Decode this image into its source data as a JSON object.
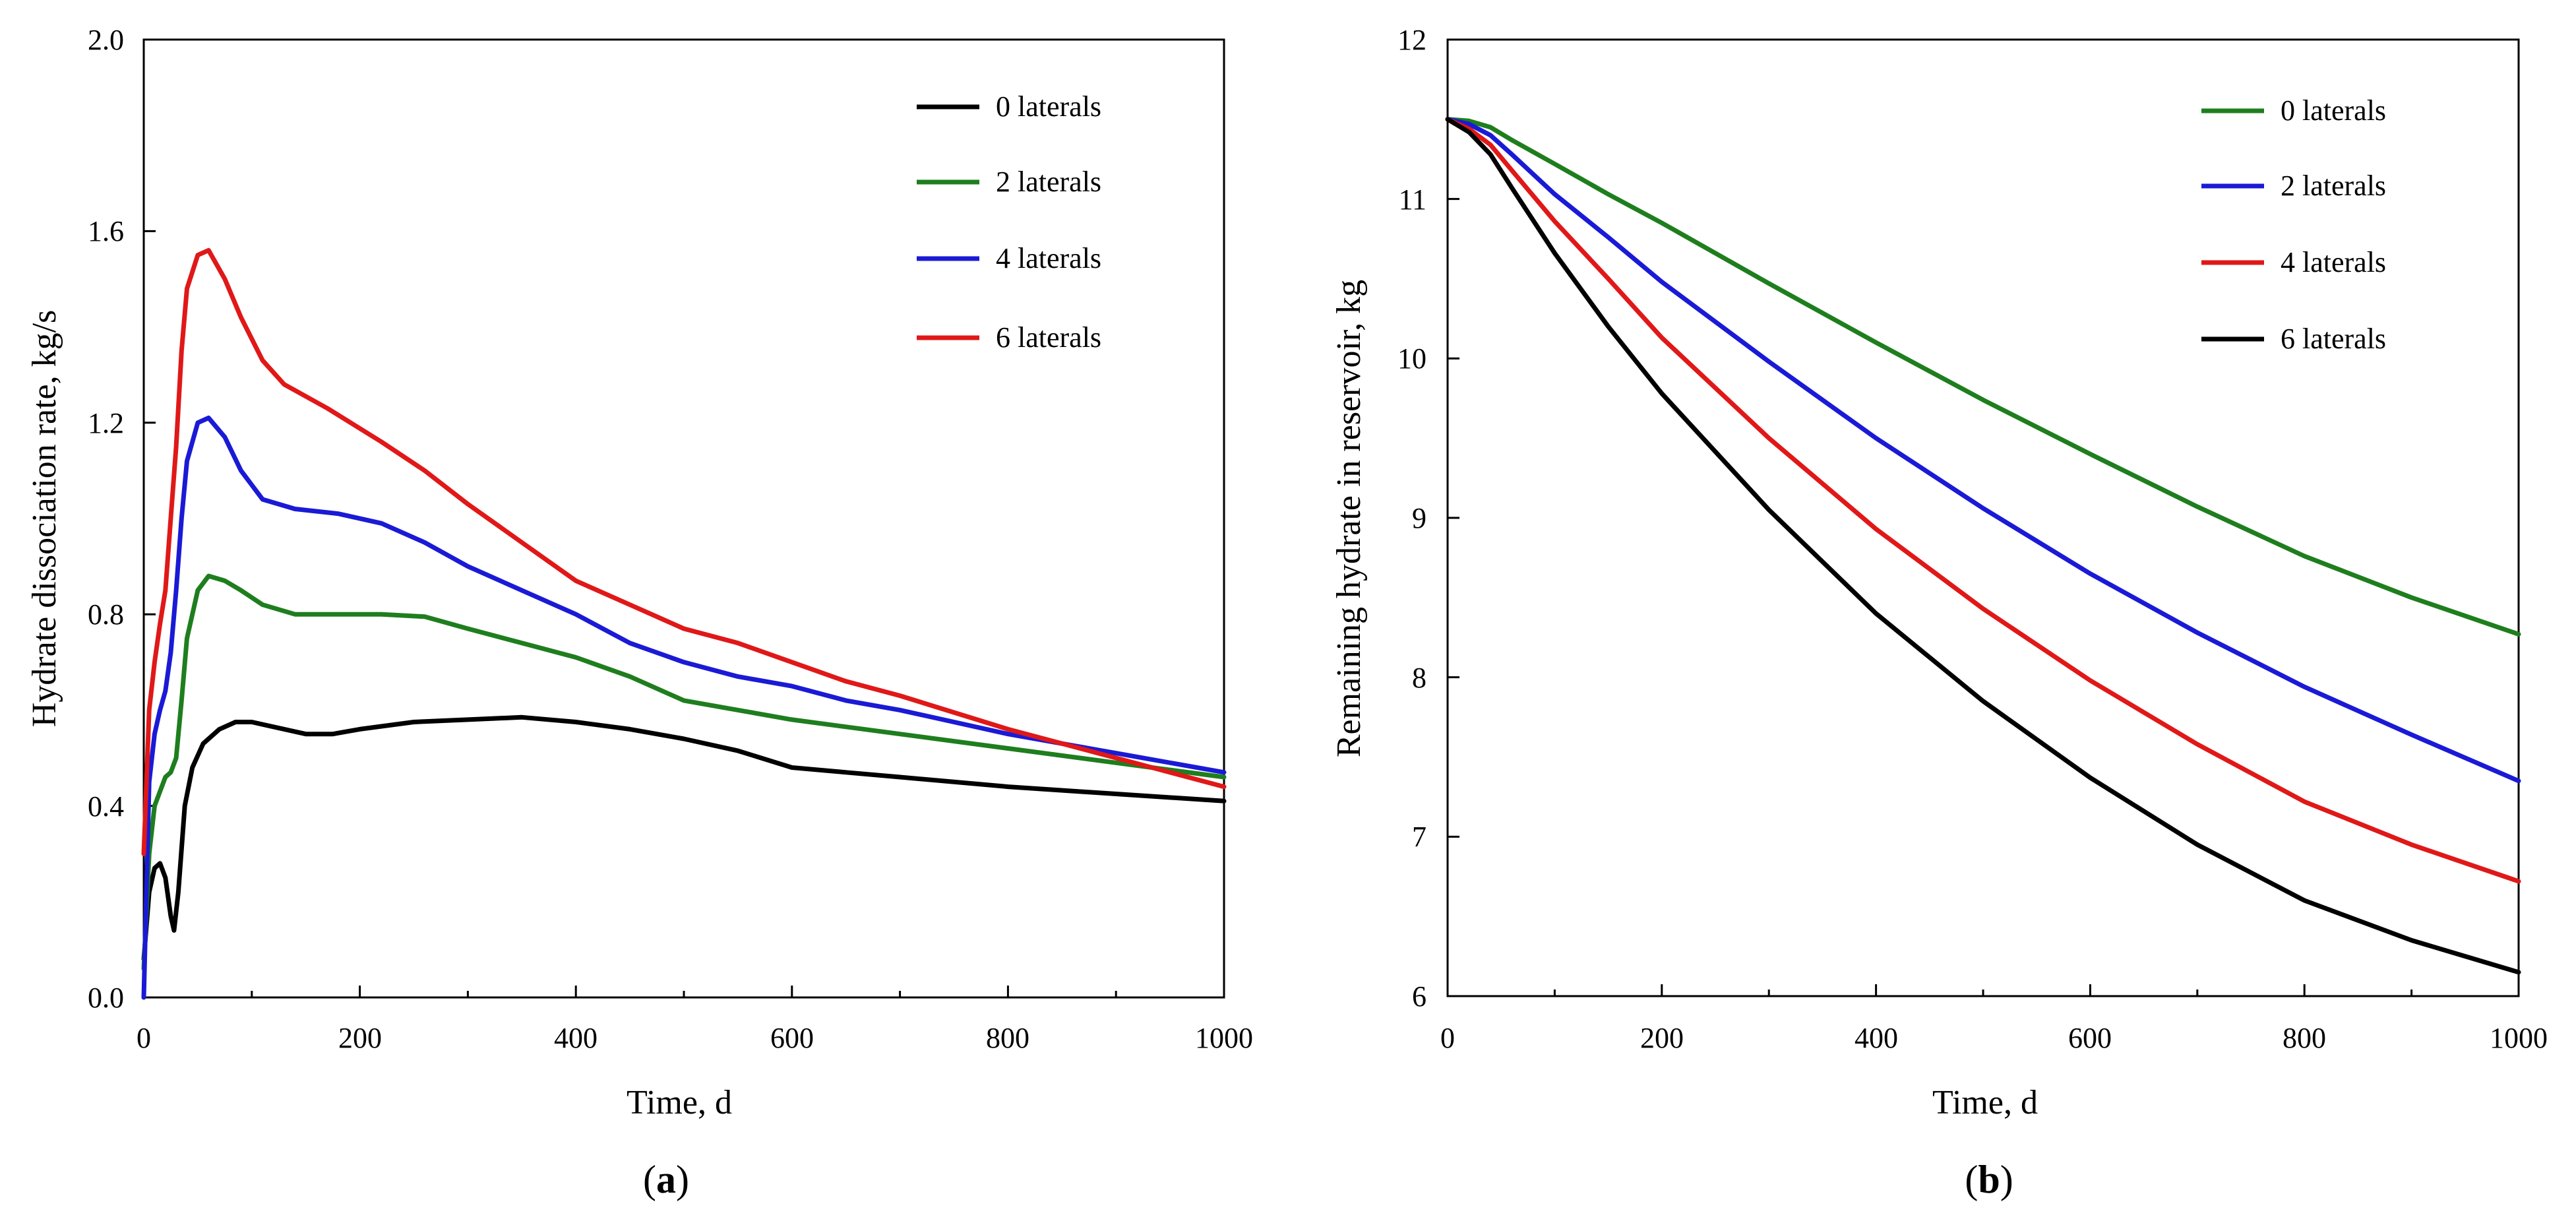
{
  "chart_data": [
    {
      "type": "line",
      "panel": "a",
      "caption_open": "(",
      "caption_letter": "a",
      "caption_close": ")",
      "xlabel": "Time, d",
      "ylabel": "Hydrate dissociation rate, kg/s",
      "xlim": [
        0,
        1000
      ],
      "ylim": [
        0.0,
        2.0
      ],
      "xticks": [
        "0",
        "200",
        "400",
        "600",
        "800",
        "1000"
      ],
      "yticks": [
        "0.0",
        "0.4",
        "0.8",
        "1.2",
        "1.6",
        "2.0"
      ],
      "legend_position": "top-right",
      "series": [
        {
          "name": "0 laterals",
          "color": "#000000",
          "points": [
            [
              0,
              0.08
            ],
            [
              5,
              0.22
            ],
            [
              10,
              0.27
            ],
            [
              15,
              0.28
            ],
            [
              20,
              0.25
            ],
            [
              25,
              0.17
            ],
            [
              28,
              0.14
            ],
            [
              32,
              0.22
            ],
            [
              38,
              0.4
            ],
            [
              45,
              0.48
            ],
            [
              55,
              0.53
            ],
            [
              70,
              0.56
            ],
            [
              85,
              0.575
            ],
            [
              100,
              0.575
            ],
            [
              120,
              0.565
            ],
            [
              150,
              0.55
            ],
            [
              175,
              0.55
            ],
            [
              200,
              0.56
            ],
            [
              250,
              0.575
            ],
            [
              300,
              0.58
            ],
            [
              350,
              0.585
            ],
            [
              400,
              0.575
            ],
            [
              450,
              0.56
            ],
            [
              500,
              0.54
            ],
            [
              550,
              0.515
            ],
            [
              600,
              0.48
            ],
            [
              650,
              0.47
            ],
            [
              700,
              0.46
            ],
            [
              800,
              0.44
            ],
            [
              900,
              0.425
            ],
            [
              1000,
              0.41
            ]
          ]
        },
        {
          "name": "2 laterals",
          "color": "#1e7e1e",
          "points": [
            [
              0,
              0.06
            ],
            [
              5,
              0.3
            ],
            [
              10,
              0.4
            ],
            [
              15,
              0.43
            ],
            [
              20,
              0.46
            ],
            [
              25,
              0.47
            ],
            [
              30,
              0.5
            ],
            [
              35,
              0.62
            ],
            [
              40,
              0.75
            ],
            [
              50,
              0.85
            ],
            [
              60,
              0.88
            ],
            [
              75,
              0.87
            ],
            [
              90,
              0.85
            ],
            [
              110,
              0.82
            ],
            [
              140,
              0.8
            ],
            [
              180,
              0.8
            ],
            [
              220,
              0.8
            ],
            [
              260,
              0.795
            ],
            [
              300,
              0.77
            ],
            [
              350,
              0.74
            ],
            [
              400,
              0.71
            ],
            [
              450,
              0.67
            ],
            [
              500,
              0.62
            ],
            [
              550,
              0.6
            ],
            [
              600,
              0.58
            ],
            [
              650,
              0.565
            ],
            [
              700,
              0.55
            ],
            [
              800,
              0.52
            ],
            [
              900,
              0.49
            ],
            [
              1000,
              0.46
            ]
          ]
        },
        {
          "name": "4 laterals",
          "color": "#1a1ad6",
          "points": [
            [
              0,
              0.0
            ],
            [
              5,
              0.45
            ],
            [
              10,
              0.55
            ],
            [
              15,
              0.6
            ],
            [
              20,
              0.64
            ],
            [
              25,
              0.72
            ],
            [
              30,
              0.85
            ],
            [
              35,
              1.0
            ],
            [
              40,
              1.12
            ],
            [
              50,
              1.2
            ],
            [
              60,
              1.21
            ],
            [
              75,
              1.17
            ],
            [
              90,
              1.1
            ],
            [
              110,
              1.04
            ],
            [
              140,
              1.02
            ],
            [
              180,
              1.01
            ],
            [
              220,
              0.99
            ],
            [
              260,
              0.95
            ],
            [
              300,
              0.9
            ],
            [
              350,
              0.85
            ],
            [
              400,
              0.8
            ],
            [
              450,
              0.74
            ],
            [
              500,
              0.7
            ],
            [
              550,
              0.67
            ],
            [
              600,
              0.65
            ],
            [
              650,
              0.62
            ],
            [
              700,
              0.6
            ],
            [
              800,
              0.55
            ],
            [
              900,
              0.51
            ],
            [
              1000,
              0.47
            ]
          ]
        },
        {
          "name": "6 laterals",
          "color": "#e01818",
          "points": [
            [
              0,
              0.3
            ],
            [
              5,
              0.6
            ],
            [
              10,
              0.7
            ],
            [
              15,
              0.78
            ],
            [
              20,
              0.85
            ],
            [
              25,
              1.0
            ],
            [
              30,
              1.15
            ],
            [
              35,
              1.35
            ],
            [
              40,
              1.48
            ],
            [
              50,
              1.55
            ],
            [
              60,
              1.56
            ],
            [
              75,
              1.5
            ],
            [
              90,
              1.42
            ],
            [
              110,
              1.33
            ],
            [
              130,
              1.28
            ],
            [
              170,
              1.23
            ],
            [
              220,
              1.16
            ],
            [
              260,
              1.1
            ],
            [
              300,
              1.03
            ],
            [
              350,
              0.95
            ],
            [
              400,
              0.87
            ],
            [
              450,
              0.82
            ],
            [
              500,
              0.77
            ],
            [
              550,
              0.74
            ],
            [
              600,
              0.7
            ],
            [
              650,
              0.66
            ],
            [
              700,
              0.63
            ],
            [
              800,
              0.56
            ],
            [
              900,
              0.5
            ],
            [
              1000,
              0.44
            ]
          ]
        }
      ]
    },
    {
      "type": "line",
      "panel": "b",
      "caption_open": "(",
      "caption_letter": "b",
      "caption_close": ")",
      "xlabel": "Time, d",
      "ylabel": "Remaining hydrate in reservoir, kg",
      "xlim": [
        0,
        1000
      ],
      "ylim": [
        6,
        12
      ],
      "xticks": [
        "0",
        "200",
        "400",
        "600",
        "800",
        "1000"
      ],
      "yticks": [
        "6",
        "7",
        "8",
        "9",
        "10",
        "11",
        "12"
      ],
      "legend_position": "top-right",
      "series": [
        {
          "name": "0 laterals",
          "color": "#1e7e1e",
          "points": [
            [
              0,
              11.5
            ],
            [
              20,
              11.49
            ],
            [
              40,
              11.45
            ],
            [
              60,
              11.37
            ],
            [
              100,
              11.22
            ],
            [
              150,
              11.03
            ],
            [
              200,
              10.85
            ],
            [
              300,
              10.47
            ],
            [
              400,
              10.1
            ],
            [
              500,
              9.74
            ],
            [
              600,
              9.4
            ],
            [
              700,
              9.07
            ],
            [
              800,
              8.76
            ],
            [
              900,
              8.5
            ],
            [
              1000,
              8.27
            ]
          ]
        },
        {
          "name": "2 laterals",
          "color": "#1a1ad6",
          "points": [
            [
              0,
              11.5
            ],
            [
              20,
              11.47
            ],
            [
              40,
              11.4
            ],
            [
              60,
              11.28
            ],
            [
              100,
              11.03
            ],
            [
              150,
              10.76
            ],
            [
              200,
              10.48
            ],
            [
              300,
              9.98
            ],
            [
              400,
              9.5
            ],
            [
              500,
              9.06
            ],
            [
              600,
              8.65
            ],
            [
              700,
              8.28
            ],
            [
              800,
              7.94
            ],
            [
              900,
              7.64
            ],
            [
              1000,
              7.35
            ]
          ]
        },
        {
          "name": "4 laterals",
          "color": "#e01818",
          "points": [
            [
              0,
              11.5
            ],
            [
              20,
              11.44
            ],
            [
              40,
              11.34
            ],
            [
              60,
              11.18
            ],
            [
              100,
              10.86
            ],
            [
              150,
              10.5
            ],
            [
              200,
              10.13
            ],
            [
              300,
              9.5
            ],
            [
              400,
              8.93
            ],
            [
              500,
              8.43
            ],
            [
              600,
              7.98
            ],
            [
              700,
              7.58
            ],
            [
              800,
              7.22
            ],
            [
              900,
              6.95
            ],
            [
              1000,
              6.72
            ]
          ]
        },
        {
          "name": "6 laterals",
          "color": "#000000",
          "points": [
            [
              0,
              11.5
            ],
            [
              20,
              11.42
            ],
            [
              40,
              11.28
            ],
            [
              60,
              11.07
            ],
            [
              100,
              10.66
            ],
            [
              150,
              10.2
            ],
            [
              200,
              9.78
            ],
            [
              300,
              9.05
            ],
            [
              400,
              8.4
            ],
            [
              500,
              7.85
            ],
            [
              600,
              7.37
            ],
            [
              700,
              6.95
            ],
            [
              800,
              6.6
            ],
            [
              900,
              6.35
            ],
            [
              1000,
              6.15
            ]
          ]
        }
      ]
    }
  ]
}
